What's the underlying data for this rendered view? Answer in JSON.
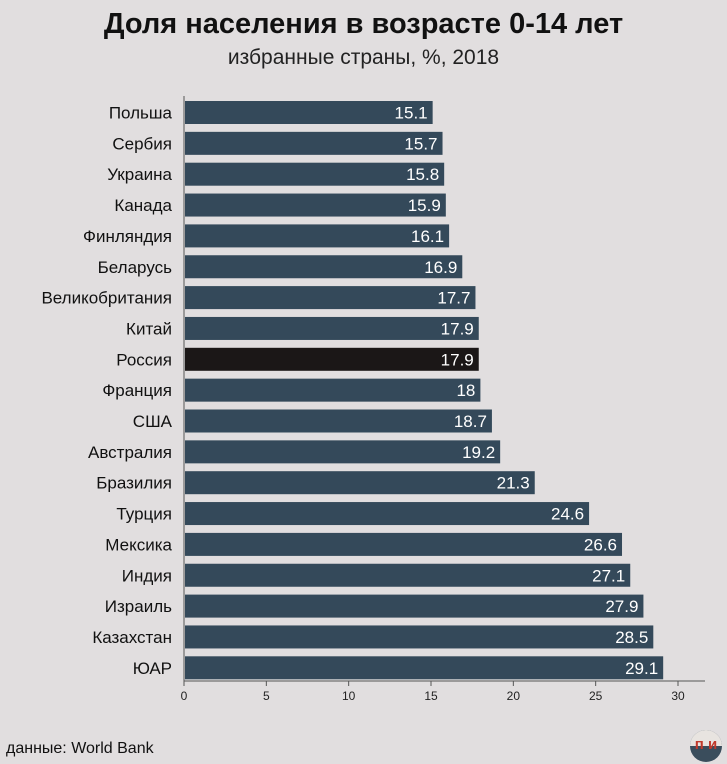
{
  "title": "Доля населения в возрасте 0-14 лет",
  "subtitle": "избранные страны, %, 2018",
  "source": "данные: World Bank",
  "logo_text": "п и",
  "colors": {
    "bar": "#34495a",
    "highlight": "#1b1717",
    "background": "#e1dedf",
    "label": "#ffffff"
  },
  "chart_data": {
    "type": "bar",
    "orientation": "horizontal",
    "categories": [
      "Польша",
      "Сербия",
      "Украина",
      "Канада",
      "Финляндия",
      "Беларусь",
      "Великобритания",
      "Китай",
      "Россия",
      "Франция",
      "США",
      "Австралия",
      "Бразилия",
      "Турция",
      "Мексика",
      "Индия",
      "Израиль",
      "Казахстан",
      "ЮАР"
    ],
    "values": [
      15.1,
      15.7,
      15.8,
      15.9,
      16.1,
      16.9,
      17.7,
      17.9,
      17.9,
      18,
      18.7,
      19.2,
      21.3,
      24.6,
      26.6,
      27.1,
      27.9,
      28.5,
      29.1
    ],
    "value_labels": [
      "15.1",
      "15.7",
      "15.8",
      "15.9",
      "16.1",
      "16.9",
      "17.7",
      "17.9",
      "17.9",
      "18",
      "18.7",
      "19.2",
      "21.3",
      "24.6",
      "26.6",
      "27.1",
      "27.9",
      "28.5",
      "29.1"
    ],
    "highlight": "Россия",
    "xlim": [
      0,
      30
    ],
    "xticks": [
      0,
      5,
      10,
      15,
      20,
      25,
      30
    ],
    "grid": false
  }
}
